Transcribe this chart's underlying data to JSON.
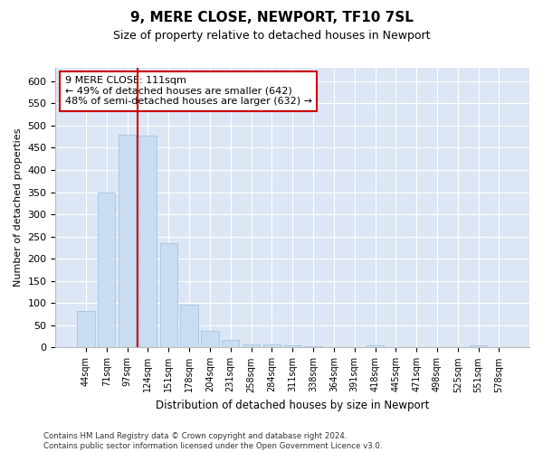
{
  "title1": "9, MERE CLOSE, NEWPORT, TF10 7SL",
  "title2": "Size of property relative to detached houses in Newport",
  "xlabel": "Distribution of detached houses by size in Newport",
  "ylabel": "Number of detached properties",
  "bar_labels": [
    "44sqm",
    "71sqm",
    "97sqm",
    "124sqm",
    "151sqm",
    "178sqm",
    "204sqm",
    "231sqm",
    "258sqm",
    "284sqm",
    "311sqm",
    "338sqm",
    "364sqm",
    "391sqm",
    "418sqm",
    "445sqm",
    "471sqm",
    "498sqm",
    "525sqm",
    "551sqm",
    "578sqm"
  ],
  "bar_values": [
    82,
    350,
    480,
    478,
    235,
    97,
    38,
    17,
    8,
    8,
    5,
    2,
    0,
    0,
    5,
    0,
    0,
    0,
    0,
    5,
    0
  ],
  "bar_color": "#c9ddf2",
  "bar_edge_color": "#a8c4e0",
  "vline_x_index": 2.5,
  "vline_color": "#cc0000",
  "annotation_text": "9 MERE CLOSE: 111sqm\n← 49% of detached houses are smaller (642)\n48% of semi-detached houses are larger (632) →",
  "annotation_box_color": "#ffffff",
  "annotation_box_edge": "#cc0000",
  "ylim": [
    0,
    630
  ],
  "yticks": [
    0,
    50,
    100,
    150,
    200,
    250,
    300,
    350,
    400,
    450,
    500,
    550,
    600
  ],
  "footer": "Contains HM Land Registry data © Crown copyright and database right 2024.\nContains public sector information licensed under the Open Government Licence v3.0.",
  "fig_bg_color": "#ffffff",
  "plot_bg_color": "#dce6f5"
}
